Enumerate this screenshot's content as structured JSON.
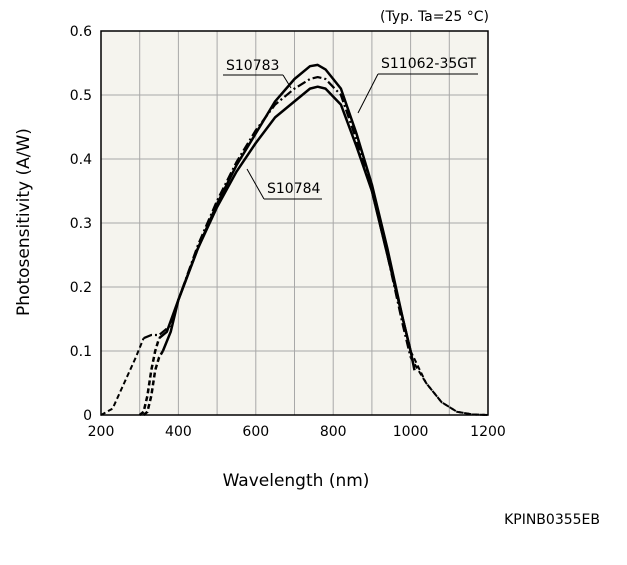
{
  "chart_data": {
    "type": "line",
    "condition": "(Typ. Ta=25 °C)",
    "xlabel": "Wavelength (nm)",
    "ylabel": "Photosensitivity (A/W)",
    "xlim": [
      200,
      1200
    ],
    "ylim": [
      0,
      0.6
    ],
    "xticks": [
      "200",
      "400",
      "600",
      "800",
      "1000",
      "1200"
    ],
    "yticks": [
      "0",
      "0.1",
      "0.2",
      "0.3",
      "0.4",
      "0.5",
      "0.6"
    ],
    "grid": true,
    "annotations": [
      "S10783",
      "S11062-35GT",
      "S10784"
    ],
    "series": [
      {
        "name": "S10783",
        "colors": {
          "line": "#000000"
        },
        "points": [
          [
            310,
            0
          ],
          [
            320,
            0.005
          ],
          [
            330,
            0.03
          ],
          [
            340,
            0.07
          ],
          [
            350,
            0.09
          ],
          [
            360,
            0.1
          ],
          [
            380,
            0.13
          ],
          [
            400,
            0.18
          ],
          [
            450,
            0.26
          ],
          [
            500,
            0.33
          ],
          [
            550,
            0.39
          ],
          [
            600,
            0.44
          ],
          [
            650,
            0.49
          ],
          [
            700,
            0.525
          ],
          [
            740,
            0.545
          ],
          [
            760,
            0.547
          ],
          [
            780,
            0.54
          ],
          [
            820,
            0.51
          ],
          [
            860,
            0.44
          ],
          [
            900,
            0.36
          ],
          [
            940,
            0.26
          ],
          [
            980,
            0.15
          ],
          [
            1000,
            0.1
          ],
          [
            1010,
            0.07
          ]
        ]
      },
      {
        "name": "S11062-35GT",
        "colors": {
          "line": "#000000"
        },
        "points": [
          [
            200,
            0
          ],
          [
            230,
            0.01
          ],
          [
            260,
            0.05
          ],
          [
            290,
            0.09
          ],
          [
            310,
            0.12
          ],
          [
            330,
            0.125
          ],
          [
            350,
            0.125
          ],
          [
            380,
            0.14
          ],
          [
            400,
            0.18
          ],
          [
            450,
            0.265
          ],
          [
            500,
            0.335
          ],
          [
            550,
            0.395
          ],
          [
            600,
            0.445
          ],
          [
            650,
            0.485
          ],
          [
            700,
            0.51
          ],
          [
            740,
            0.525
          ],
          [
            760,
            0.528
          ],
          [
            780,
            0.525
          ],
          [
            820,
            0.5
          ],
          [
            860,
            0.43
          ],
          [
            900,
            0.35
          ],
          [
            940,
            0.25
          ],
          [
            980,
            0.14
          ],
          [
            1000,
            0.09
          ],
          [
            1040,
            0.05
          ],
          [
            1080,
            0.02
          ],
          [
            1120,
            0.005
          ],
          [
            1160,
            0.001
          ],
          [
            1200,
            0
          ]
        ]
      },
      {
        "name": "S10784",
        "colors": {
          "line": "#000000"
        },
        "points": [
          [
            300,
            0
          ],
          [
            310,
            0.005
          ],
          [
            320,
            0.03
          ],
          [
            330,
            0.07
          ],
          [
            340,
            0.1
          ],
          [
            350,
            0.12
          ],
          [
            370,
            0.13
          ],
          [
            400,
            0.18
          ],
          [
            450,
            0.26
          ],
          [
            500,
            0.325
          ],
          [
            550,
            0.38
          ],
          [
            600,
            0.425
          ],
          [
            650,
            0.465
          ],
          [
            700,
            0.49
          ],
          [
            740,
            0.51
          ],
          [
            760,
            0.513
          ],
          [
            780,
            0.51
          ],
          [
            820,
            0.485
          ],
          [
            860,
            0.42
          ],
          [
            900,
            0.35
          ],
          [
            940,
            0.25
          ],
          [
            980,
            0.15
          ],
          [
            1000,
            0.1
          ],
          [
            1040,
            0.05
          ],
          [
            1080,
            0.02
          ],
          [
            1120,
            0.005
          ],
          [
            1160,
            0.001
          ],
          [
            1200,
            0
          ]
        ]
      }
    ]
  },
  "figure_code": "KPINB0355EB"
}
